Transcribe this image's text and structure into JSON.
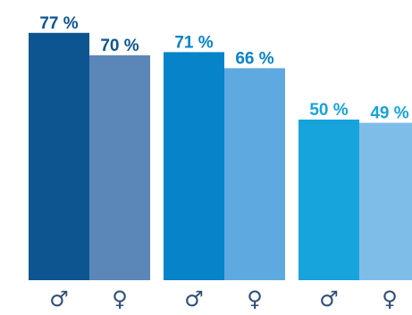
{
  "chart_data": {
    "type": "bar",
    "title": "",
    "xlabel": "",
    "ylabel": "",
    "ylim": [
      0,
      100
    ],
    "grid": false,
    "legend": "none",
    "unit": "%",
    "groups": [
      {
        "bars": [
          {
            "category": "♂",
            "value": 77,
            "label": "77 %",
            "color": "#0d5591",
            "label_color": "#0d5591"
          },
          {
            "category": "♀",
            "value": 70,
            "label": "70 %",
            "color": "#5a87b8",
            "label_color": "#0d5591"
          }
        ]
      },
      {
        "bars": [
          {
            "category": "♂",
            "value": 71,
            "label": "71 %",
            "color": "#0783c9",
            "label_color": "#0783c9"
          },
          {
            "category": "♀",
            "value": 66,
            "label": "66 %",
            "color": "#5ea9df",
            "label_color": "#0783c9"
          }
        ]
      },
      {
        "bars": [
          {
            "category": "♂",
            "value": 50,
            "label": "50 %",
            "color": "#17a3dc",
            "label_color": "#17a3dc"
          },
          {
            "category": "♀",
            "value": 49,
            "label": "49 %",
            "color": "#7fbde9",
            "label_color": "#17a3dc"
          }
        ]
      }
    ]
  }
}
